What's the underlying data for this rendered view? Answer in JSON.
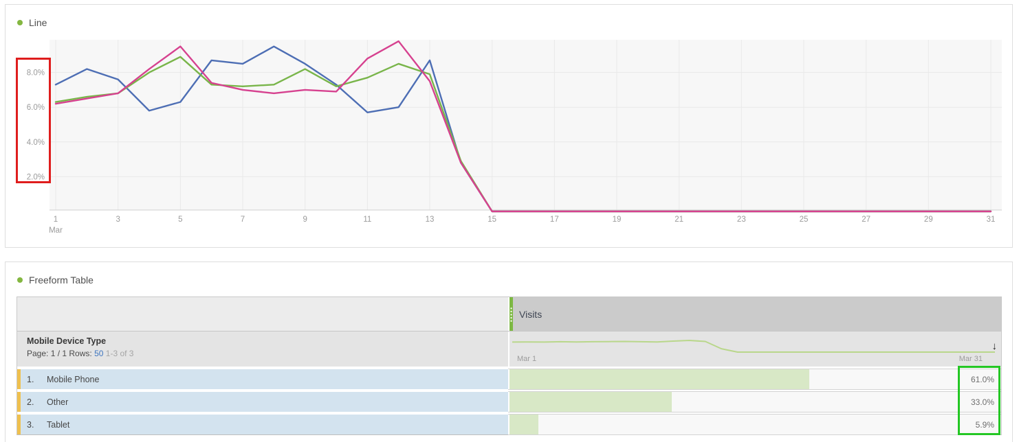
{
  "panels": {
    "line": {
      "title": "Line",
      "accent_dot_color": "#84b741"
    },
    "table": {
      "title": "Freeform Table",
      "accent_dot_color": "#84b741",
      "column_header": "Visits",
      "dimension": {
        "name": "Mobile Device Type",
        "page_text": "Page: 1 / 1",
        "rows_label": "Rows:",
        "rows_value": "50",
        "range_text": "1-3 of 3"
      },
      "sparkline": {
        "start_label": "Mar 1",
        "end_label": "Mar 31",
        "color": "#b9d78b",
        "values": [
          1.0,
          1.005,
          1.0,
          1.01,
          1.005,
          1.01,
          1.015,
          1.02,
          1.01,
          1.005,
          1.03,
          1.05,
          1.02,
          0.8,
          0.7,
          0.7,
          0.7,
          0.7,
          0.7,
          0.7,
          0.7,
          0.7,
          0.7,
          0.7,
          0.7,
          0.7,
          0.7,
          0.7,
          0.7,
          0.7,
          0.7
        ]
      },
      "sort_icon_glyph": "↓",
      "rows": [
        {
          "rank": "1.",
          "label": "Mobile Phone",
          "value": "61.0%",
          "pct": 61.0
        },
        {
          "rank": "2.",
          "label": "Other",
          "value": "33.0%",
          "pct": 33.0
        },
        {
          "rank": "3.",
          "label": "Tablet",
          "value": "5.9%",
          "pct": 5.9
        }
      ],
      "colors": {
        "row_highlight": "#d3e3ef",
        "row_edge_strip": "#efc04e",
        "bar_fill": "#d8e8c6",
        "column_header_bg": "#cbcbcb",
        "column_grip": "#7db843"
      }
    }
  },
  "annotations": {
    "red_box_color": "#df1d1d",
    "green_box_color": "#24c724"
  },
  "chart_data": {
    "type": "line",
    "title": "Line",
    "xlabel": "Mar",
    "x": [
      1,
      2,
      3,
      4,
      5,
      6,
      7,
      8,
      9,
      10,
      11,
      12,
      13,
      14,
      15,
      16,
      17,
      18,
      19,
      20,
      21,
      22,
      23,
      24,
      25,
      26,
      27,
      28,
      29,
      30,
      31
    ],
    "x_tick_labels": [
      "1",
      "3",
      "5",
      "7",
      "9",
      "11",
      "13",
      "15",
      "17",
      "19",
      "21",
      "23",
      "25",
      "27",
      "29",
      "31"
    ],
    "x_month_label": "Mar",
    "y_ticks": [
      2,
      4,
      6,
      8
    ],
    "y_tick_labels": [
      "2.0%",
      "4.0%",
      "6.0%",
      "8.0%"
    ],
    "ylim": [
      0,
      9.9
    ],
    "grid": true,
    "legend": "none",
    "series": [
      {
        "name": "series-blue",
        "color": "#4d6eb4",
        "values": [
          7.3,
          8.2,
          7.6,
          5.8,
          6.3,
          8.7,
          8.5,
          9.5,
          8.5,
          7.3,
          5.7,
          6.0,
          8.7,
          2.8,
          0,
          0,
          0,
          0,
          0,
          0,
          0,
          0,
          0,
          0,
          0,
          0,
          0,
          0,
          0,
          0,
          0
        ]
      },
      {
        "name": "series-green",
        "color": "#79b54a",
        "values": [
          6.3,
          6.6,
          6.8,
          8.0,
          8.9,
          7.3,
          7.2,
          7.3,
          8.2,
          7.2,
          7.7,
          8.5,
          7.9,
          2.9,
          0,
          0,
          0,
          0,
          0,
          0,
          0,
          0,
          0,
          0,
          0,
          0,
          0,
          0,
          0,
          0,
          0
        ]
      },
      {
        "name": "series-pink",
        "color": "#d6418f",
        "values": [
          6.2,
          6.5,
          6.8,
          8.2,
          9.5,
          7.4,
          7.0,
          6.8,
          7.0,
          6.9,
          8.8,
          9.8,
          7.5,
          2.8,
          0,
          0,
          0,
          0,
          0,
          0,
          0,
          0,
          0,
          0,
          0,
          0,
          0,
          0,
          0,
          0,
          0
        ]
      }
    ]
  }
}
